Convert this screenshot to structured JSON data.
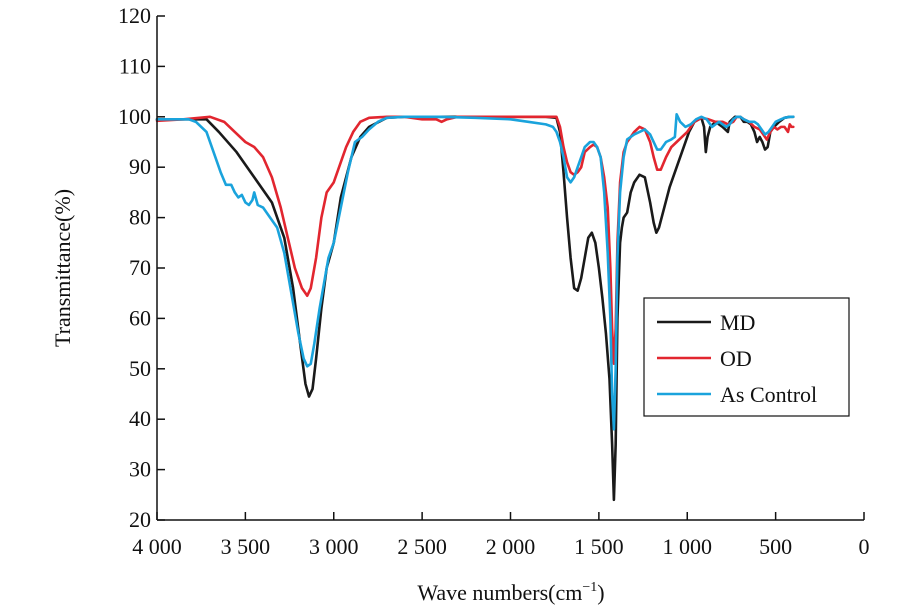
{
  "chart_data": {
    "type": "line",
    "xlabel": "Wave numbers(cm",
    "xlabel_sup": "−1",
    "xlabel_close": ")",
    "ylabel": "Transmittance(%)",
    "xlim": [
      4000,
      0
    ],
    "ylim": [
      20,
      120
    ],
    "x_ticks": [
      4000,
      3500,
      3000,
      2500,
      2000,
      1500,
      1000,
      500,
      0
    ],
    "x_tick_labels": [
      "4 000",
      "3 500",
      "3 000",
      "2 500",
      "2 000",
      "1 500",
      "1 000",
      "500",
      "0"
    ],
    "y_ticks": [
      20,
      30,
      40,
      50,
      60,
      70,
      80,
      90,
      100,
      110,
      120
    ],
    "y_tick_labels": [
      "20",
      "30",
      "40",
      "50",
      "60",
      "70",
      "80",
      "90",
      "100",
      "110",
      "120"
    ],
    "grid": false,
    "legend_position": "right",
    "series": [
      {
        "name": "MD",
        "color": "#1a1a1a",
        "points": [
          [
            4000,
            99.5
          ],
          [
            3850,
            99.5
          ],
          [
            3720,
            99.5
          ],
          [
            3650,
            97
          ],
          [
            3550,
            93
          ],
          [
            3450,
            88
          ],
          [
            3350,
            83
          ],
          [
            3280,
            76
          ],
          [
            3230,
            66
          ],
          [
            3190,
            55
          ],
          [
            3160,
            47
          ],
          [
            3140,
            44.5
          ],
          [
            3120,
            46
          ],
          [
            3100,
            52
          ],
          [
            3070,
            62
          ],
          [
            3040,
            70
          ],
          [
            3000,
            75
          ],
          [
            2960,
            84
          ],
          [
            2900,
            92
          ],
          [
            2850,
            96
          ],
          [
            2800,
            98
          ],
          [
            2700,
            99.8
          ],
          [
            2600,
            100
          ],
          [
            2400,
            100
          ],
          [
            2200,
            100
          ],
          [
            2000,
            100
          ],
          [
            1800,
            100
          ],
          [
            1740,
            99.8
          ],
          [
            1720,
            97
          ],
          [
            1700,
            89
          ],
          [
            1680,
            80
          ],
          [
            1660,
            72
          ],
          [
            1640,
            66
          ],
          [
            1620,
            65.5
          ],
          [
            1600,
            68
          ],
          [
            1580,
            72
          ],
          [
            1560,
            76
          ],
          [
            1540,
            77
          ],
          [
            1520,
            75
          ],
          [
            1500,
            70
          ],
          [
            1480,
            64
          ],
          [
            1460,
            57
          ],
          [
            1440,
            48
          ],
          [
            1425,
            35
          ],
          [
            1415,
            24
          ],
          [
            1405,
            35
          ],
          [
            1395,
            60
          ],
          [
            1380,
            75
          ],
          [
            1370,
            78
          ],
          [
            1360,
            80
          ],
          [
            1340,
            81
          ],
          [
            1320,
            85
          ],
          [
            1300,
            87
          ],
          [
            1270,
            88.5
          ],
          [
            1240,
            88
          ],
          [
            1210,
            83
          ],
          [
            1190,
            79
          ],
          [
            1175,
            77
          ],
          [
            1160,
            78
          ],
          [
            1130,
            82
          ],
          [
            1100,
            86
          ],
          [
            1060,
            90
          ],
          [
            1020,
            94
          ],
          [
            990,
            97
          ],
          [
            960,
            99
          ],
          [
            920,
            99.8
          ],
          [
            905,
            98
          ],
          [
            895,
            93
          ],
          [
            885,
            96
          ],
          [
            870,
            98
          ],
          [
            840,
            99
          ],
          [
            800,
            98
          ],
          [
            770,
            97
          ],
          [
            760,
            99
          ],
          [
            730,
            100
          ],
          [
            700,
            100
          ],
          [
            680,
            99
          ],
          [
            660,
            99
          ],
          [
            640,
            98.5
          ],
          [
            620,
            97
          ],
          [
            605,
            95
          ],
          [
            590,
            96
          ],
          [
            575,
            95
          ],
          [
            560,
            93.5
          ],
          [
            545,
            94
          ],
          [
            530,
            97
          ],
          [
            510,
            98
          ],
          [
            480,
            99
          ],
          [
            450,
            99.8
          ],
          [
            420,
            100
          ],
          [
            400,
            100
          ]
        ]
      },
      {
        "name": "OD",
        "color": "#e2262f",
        "points": [
          [
            4000,
            99.2
          ],
          [
            3850,
            99.5
          ],
          [
            3700,
            100
          ],
          [
            3620,
            99
          ],
          [
            3560,
            97
          ],
          [
            3500,
            95
          ],
          [
            3450,
            94
          ],
          [
            3400,
            92
          ],
          [
            3350,
            88
          ],
          [
            3300,
            82
          ],
          [
            3260,
            76
          ],
          [
            3220,
            70
          ],
          [
            3180,
            66
          ],
          [
            3150,
            64.5
          ],
          [
            3130,
            66
          ],
          [
            3100,
            72
          ],
          [
            3070,
            80
          ],
          [
            3040,
            85
          ],
          [
            3000,
            87
          ],
          [
            2970,
            90
          ],
          [
            2930,
            94
          ],
          [
            2890,
            97
          ],
          [
            2850,
            99
          ],
          [
            2800,
            99.8
          ],
          [
            2700,
            100
          ],
          [
            2600,
            100
          ],
          [
            2500,
            99.5
          ],
          [
            2420,
            99.5
          ],
          [
            2390,
            99
          ],
          [
            2360,
            99.5
          ],
          [
            2300,
            100
          ],
          [
            2200,
            100
          ],
          [
            2000,
            100
          ],
          [
            1800,
            100
          ],
          [
            1740,
            100
          ],
          [
            1720,
            98
          ],
          [
            1700,
            94
          ],
          [
            1680,
            91
          ],
          [
            1660,
            89
          ],
          [
            1640,
            88.5
          ],
          [
            1620,
            89
          ],
          [
            1600,
            90
          ],
          [
            1580,
            93
          ],
          [
            1550,
            94
          ],
          [
            1530,
            94.5
          ],
          [
            1510,
            94
          ],
          [
            1490,
            92
          ],
          [
            1470,
            88
          ],
          [
            1450,
            82
          ],
          [
            1435,
            70
          ],
          [
            1425,
            58
          ],
          [
            1415,
            51
          ],
          [
            1405,
            58
          ],
          [
            1395,
            75
          ],
          [
            1380,
            87
          ],
          [
            1360,
            93
          ],
          [
            1340,
            95
          ],
          [
            1320,
            96
          ],
          [
            1300,
            97
          ],
          [
            1270,
            98
          ],
          [
            1240,
            97.5
          ],
          [
            1210,
            95
          ],
          [
            1190,
            92
          ],
          [
            1170,
            89.5
          ],
          [
            1150,
            89.5
          ],
          [
            1120,
            92
          ],
          [
            1090,
            94
          ],
          [
            1060,
            95
          ],
          [
            1030,
            96
          ],
          [
            1000,
            97
          ],
          [
            960,
            99
          ],
          [
            920,
            99.8
          ],
          [
            880,
            99.5
          ],
          [
            840,
            99
          ],
          [
            800,
            99
          ],
          [
            770,
            98.5
          ],
          [
            740,
            99
          ],
          [
            720,
            100
          ],
          [
            700,
            100
          ],
          [
            680,
            99.5
          ],
          [
            650,
            99
          ],
          [
            620,
            98
          ],
          [
            590,
            97.5
          ],
          [
            570,
            96.5
          ],
          [
            550,
            95.5
          ],
          [
            530,
            97
          ],
          [
            510,
            98
          ],
          [
            490,
            97.5
          ],
          [
            470,
            98
          ],
          [
            450,
            98
          ],
          [
            430,
            97
          ],
          [
            420,
            98.5
          ],
          [
            410,
            98
          ],
          [
            400,
            98
          ]
        ]
      },
      {
        "name": "As Control",
        "color": "#1aa3dc",
        "points": [
          [
            4000,
            99.5
          ],
          [
            3900,
            99.5
          ],
          [
            3820,
            99.5
          ],
          [
            3780,
            99
          ],
          [
            3720,
            97
          ],
          [
            3680,
            93
          ],
          [
            3640,
            89
          ],
          [
            3610,
            86.5
          ],
          [
            3580,
            86.5
          ],
          [
            3560,
            85
          ],
          [
            3540,
            84
          ],
          [
            3520,
            84.5
          ],
          [
            3500,
            83
          ],
          [
            3480,
            82.5
          ],
          [
            3460,
            83.5
          ],
          [
            3450,
            85
          ],
          [
            3430,
            82.5
          ],
          [
            3400,
            82
          ],
          [
            3360,
            80
          ],
          [
            3320,
            78
          ],
          [
            3280,
            73
          ],
          [
            3240,
            65
          ],
          [
            3200,
            57
          ],
          [
            3170,
            52
          ],
          [
            3150,
            50.5
          ],
          [
            3130,
            51
          ],
          [
            3110,
            55
          ],
          [
            3080,
            62
          ],
          [
            3050,
            68
          ],
          [
            3030,
            72
          ],
          [
            3000,
            75
          ],
          [
            2960,
            82
          ],
          [
            2920,
            89
          ],
          [
            2880,
            95
          ],
          [
            2840,
            96
          ],
          [
            2800,
            97.5
          ],
          [
            2750,
            99
          ],
          [
            2700,
            99.8
          ],
          [
            2600,
            100
          ],
          [
            2400,
            100
          ],
          [
            2200,
            99.8
          ],
          [
            2000,
            99.5
          ],
          [
            1900,
            99
          ],
          [
            1800,
            98.5
          ],
          [
            1760,
            98
          ],
          [
            1740,
            97
          ],
          [
            1720,
            95
          ],
          [
            1700,
            92
          ],
          [
            1680,
            88
          ],
          [
            1660,
            87
          ],
          [
            1640,
            88
          ],
          [
            1620,
            90
          ],
          [
            1600,
            92
          ],
          [
            1580,
            94
          ],
          [
            1550,
            95
          ],
          [
            1530,
            95
          ],
          [
            1510,
            94
          ],
          [
            1490,
            92
          ],
          [
            1470,
            85
          ],
          [
            1450,
            73
          ],
          [
            1435,
            60
          ],
          [
            1425,
            45
          ],
          [
            1415,
            38
          ],
          [
            1405,
            50
          ],
          [
            1395,
            72
          ],
          [
            1380,
            85
          ],
          [
            1360,
            92
          ],
          [
            1340,
            95.5
          ],
          [
            1320,
            96
          ],
          [
            1300,
            96.5
          ],
          [
            1270,
            97
          ],
          [
            1240,
            97.5
          ],
          [
            1210,
            96.5
          ],
          [
            1190,
            95
          ],
          [
            1170,
            93.5
          ],
          [
            1150,
            93.5
          ],
          [
            1120,
            95
          ],
          [
            1090,
            95.5
          ],
          [
            1070,
            96
          ],
          [
            1060,
            100.5
          ],
          [
            1040,
            99
          ],
          [
            1010,
            98
          ],
          [
            980,
            98.5
          ],
          [
            950,
            99.5
          ],
          [
            920,
            100
          ],
          [
            890,
            99.5
          ],
          [
            860,
            98
          ],
          [
            840,
            98.5
          ],
          [
            820,
            99
          ],
          [
            800,
            98.5
          ],
          [
            780,
            98
          ],
          [
            760,
            98.5
          ],
          [
            740,
            99.5
          ],
          [
            720,
            100
          ],
          [
            700,
            100
          ],
          [
            680,
            99.5
          ],
          [
            650,
            99
          ],
          [
            620,
            99
          ],
          [
            600,
            98.5
          ],
          [
            580,
            97.5
          ],
          [
            560,
            96.5
          ],
          [
            540,
            97
          ],
          [
            520,
            98
          ],
          [
            500,
            99
          ],
          [
            470,
            99.5
          ],
          [
            450,
            99.8
          ],
          [
            420,
            100
          ],
          [
            400,
            100
          ]
        ]
      }
    ]
  }
}
